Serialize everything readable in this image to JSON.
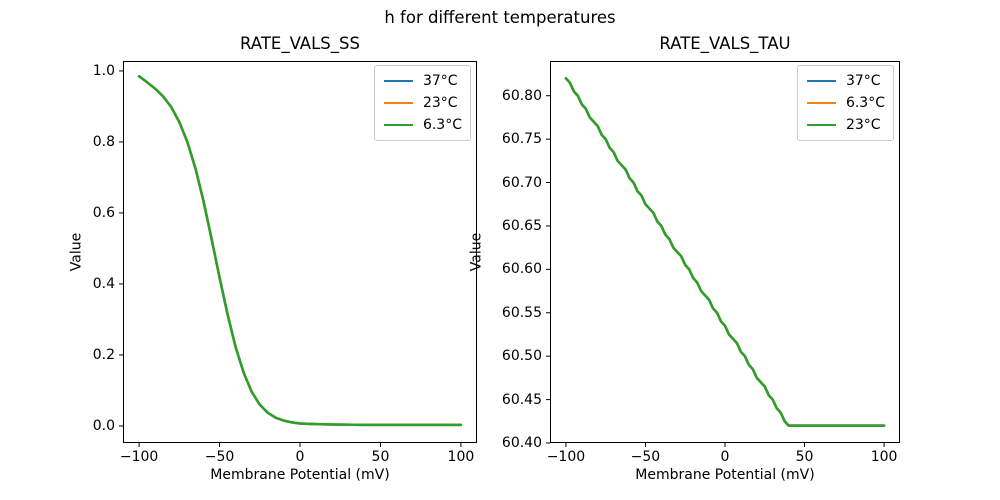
{
  "figure": {
    "suptitle": "h for different temperatures",
    "background_color": "#ffffff",
    "text_color": "#000000"
  },
  "palette": {
    "blue": "#1f77b4",
    "orange": "#ff7f0e",
    "green": "#2ca02c"
  },
  "chart_data": [
    {
      "type": "line",
      "title": "RATE_VALS_SS",
      "xlabel": "Membrane Potential (mV)",
      "ylabel": "Value",
      "xlim": [
        -110,
        110
      ],
      "ylim": [
        -0.048,
        1.028
      ],
      "xticks": [
        -100,
        -50,
        0,
        50,
        100
      ],
      "xtick_labels": [
        "−100",
        "−50",
        "0",
        "50",
        "100"
      ],
      "yticks": [
        0.0,
        0.2,
        0.4,
        0.6,
        0.8,
        1.0
      ],
      "ytick_labels": [
        "0.0",
        "0.2",
        "0.4",
        "0.6",
        "0.8",
        "1.0"
      ],
      "grid": false,
      "legend_position": "upper right",
      "series": [
        {
          "name": "37°C",
          "color": "#1f77b4"
        },
        {
          "name": "23°C",
          "color": "#ff7f0e"
        },
        {
          "name": "6.3°C",
          "color": "#2ca02c"
        }
      ],
      "overlap_note": "all three temperature curves coincide exactly; the last-drawn green curve is the one visible",
      "points": [
        [
          -100,
          0.985
        ],
        [
          -95,
          0.968
        ],
        [
          -90,
          0.95
        ],
        [
          -85,
          0.928
        ],
        [
          -80,
          0.898
        ],
        [
          -75,
          0.856
        ],
        [
          -70,
          0.8
        ],
        [
          -65,
          0.726
        ],
        [
          -60,
          0.634
        ],
        [
          -55,
          0.528
        ],
        [
          -50,
          0.418
        ],
        [
          -45,
          0.314
        ],
        [
          -40,
          0.222
        ],
        [
          -35,
          0.15
        ],
        [
          -30,
          0.096
        ],
        [
          -25,
          0.06
        ],
        [
          -20,
          0.037
        ],
        [
          -15,
          0.023
        ],
        [
          -10,
          0.015
        ],
        [
          -5,
          0.01
        ],
        [
          0,
          0.007
        ],
        [
          10,
          0.005
        ],
        [
          20,
          0.004
        ],
        [
          40,
          0.003
        ],
        [
          60,
          0.003
        ],
        [
          80,
          0.003
        ],
        [
          100,
          0.003
        ]
      ]
    },
    {
      "type": "line",
      "title": "RATE_VALS_TAU",
      "xlabel": "Membrane Potential (mV)",
      "ylabel": "Value",
      "xlim": [
        -110,
        110
      ],
      "ylim": [
        60.4,
        60.84
      ],
      "xticks": [
        -100,
        -50,
        0,
        50,
        100
      ],
      "xtick_labels": [
        "−100",
        "−50",
        "0",
        "50",
        "100"
      ],
      "yticks": [
        60.4,
        60.45,
        60.5,
        60.55,
        60.6,
        60.65,
        60.7,
        60.75,
        60.8
      ],
      "ytick_labels": [
        "60.40",
        "60.45",
        "60.50",
        "60.55",
        "60.60",
        "60.65",
        "60.70",
        "60.75",
        "60.80"
      ],
      "grid": false,
      "legend_position": "upper right",
      "series": [
        {
          "name": "37°C",
          "color": "#1f77b4"
        },
        {
          "name": "6.3°C",
          "color": "#ff7f0e"
        },
        {
          "name": "23°C",
          "color": "#2ca02c"
        }
      ],
      "overlap_note": "all three temperature curves coincide exactly; jagged descent from 60.82 at -100 mV to 60.42 at +40 mV, then constant to +100 mV",
      "points": [
        [
          -100,
          60.82
        ],
        [
          -97.5,
          60.815
        ],
        [
          -95,
          60.805
        ],
        [
          -92.5,
          60.8
        ],
        [
          -90,
          60.79
        ],
        [
          -87.5,
          60.785
        ],
        [
          -85,
          60.775
        ],
        [
          -82.5,
          60.77
        ],
        [
          -80,
          60.765
        ],
        [
          -77.5,
          60.755
        ],
        [
          -75,
          60.75
        ],
        [
          -72.5,
          60.74
        ],
        [
          -70,
          60.735
        ],
        [
          -67.5,
          60.725
        ],
        [
          -65,
          60.72
        ],
        [
          -62.5,
          60.715
        ],
        [
          -60,
          60.705
        ],
        [
          -57.5,
          60.7
        ],
        [
          -55,
          60.69
        ],
        [
          -52.5,
          60.685
        ],
        [
          -50,
          60.675
        ],
        [
          -47.5,
          60.67
        ],
        [
          -45,
          60.665
        ],
        [
          -42.5,
          60.655
        ],
        [
          -40,
          60.65
        ],
        [
          -37.5,
          60.64
        ],
        [
          -35,
          60.635
        ],
        [
          -32.5,
          60.625
        ],
        [
          -30,
          60.62
        ],
        [
          -27.5,
          60.615
        ],
        [
          -25,
          60.605
        ],
        [
          -22.5,
          60.6
        ],
        [
          -20,
          60.59
        ],
        [
          -17.5,
          60.585
        ],
        [
          -15,
          60.575
        ],
        [
          -12.5,
          60.57
        ],
        [
          -10,
          60.565
        ],
        [
          -7.5,
          60.555
        ],
        [
          -5,
          60.55
        ],
        [
          -2.5,
          60.54
        ],
        [
          0,
          60.535
        ],
        [
          2.5,
          60.525
        ],
        [
          5,
          60.52
        ],
        [
          7.5,
          60.515
        ],
        [
          10,
          60.505
        ],
        [
          12.5,
          60.5
        ],
        [
          15,
          60.49
        ],
        [
          17.5,
          60.485
        ],
        [
          20,
          60.475
        ],
        [
          22.5,
          60.47
        ],
        [
          25,
          60.465
        ],
        [
          27.5,
          60.455
        ],
        [
          30,
          60.45
        ],
        [
          32.5,
          60.44
        ],
        [
          35,
          60.435
        ],
        [
          37.5,
          60.425
        ],
        [
          40,
          60.42
        ],
        [
          100,
          60.42
        ]
      ]
    }
  ]
}
